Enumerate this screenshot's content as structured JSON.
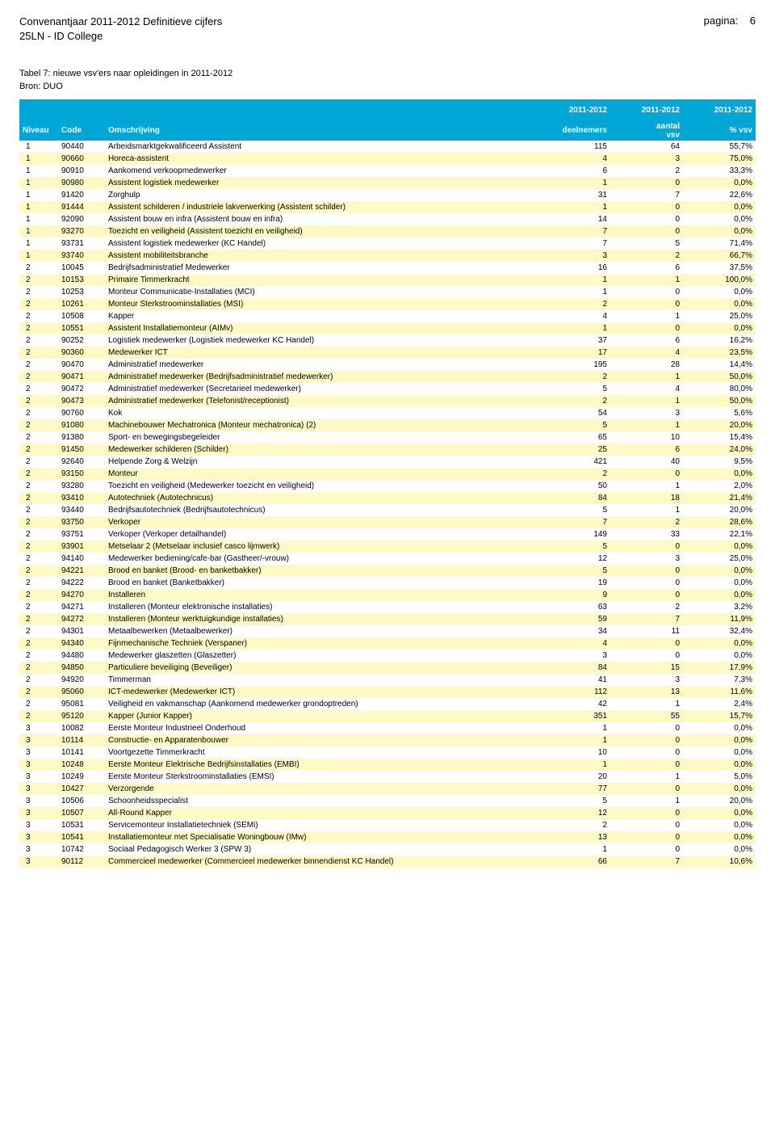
{
  "header": {
    "title_line1": "Convenantjaar 2011-2012 Definitieve cijfers",
    "title_line2": "25LN - ID College",
    "page_label": "pagina:",
    "page_number": "6"
  },
  "subheader": {
    "caption": "Tabel 7: nieuwe vsv'ers naar opleidingen in 2011-2012",
    "source": "Bron: DUO"
  },
  "year_headers": [
    "2011-2012",
    "2011-2012",
    "2011-2012"
  ],
  "columns": {
    "niveau": "Niveau",
    "code": "Code",
    "omschrijving": "Omschrijving",
    "deelnemers": "deelnemers",
    "aantal_vsv_top": "aantal",
    "aantal_vsv_bot": "vsv",
    "pct_vsv": "% vsv"
  },
  "colors": {
    "header_bg": "#00a6d6",
    "header_fg": "#ffffff",
    "row_even_bg": "#fff9c4",
    "row_odd_bg": "#ffffff"
  },
  "rows": [
    {
      "n": "1",
      "c": "90440",
      "d": "Arbeidsmarktgekwalificeerd Assistent",
      "v1": "115",
      "v2": "64",
      "v3": "55,7%"
    },
    {
      "n": "1",
      "c": "90660",
      "d": "Horeca-assistent",
      "v1": "4",
      "v2": "3",
      "v3": "75,0%"
    },
    {
      "n": "1",
      "c": "90910",
      "d": "Aankomend verkoopmedewerker",
      "v1": "6",
      "v2": "2",
      "v3": "33,3%"
    },
    {
      "n": "1",
      "c": "90980",
      "d": "Assistent logistiek medewerker",
      "v1": "1",
      "v2": "0",
      "v3": "0,0%"
    },
    {
      "n": "1",
      "c": "91420",
      "d": "Zorghulp",
      "v1": "31",
      "v2": "7",
      "v3": "22,6%"
    },
    {
      "n": "1",
      "c": "91444",
      "d": "Assistent schilderen / industriele lakverwerking (Assistent schilder)",
      "v1": "1",
      "v2": "0",
      "v3": "0,0%"
    },
    {
      "n": "1",
      "c": "92090",
      "d": "Assistent bouw en infra (Assistent bouw en infra)",
      "v1": "14",
      "v2": "0",
      "v3": "0,0%"
    },
    {
      "n": "1",
      "c": "93270",
      "d": "Toezicht en veiligheid (Assistent toezicht en veiligheid)",
      "v1": "7",
      "v2": "0",
      "v3": "0,0%"
    },
    {
      "n": "1",
      "c": "93731",
      "d": "Assistent logistiek medewerker (KC Handel)",
      "v1": "7",
      "v2": "5",
      "v3": "71,4%"
    },
    {
      "n": "1",
      "c": "93740",
      "d": "Assistent mobiliteitsbranche",
      "v1": "3",
      "v2": "2",
      "v3": "66,7%"
    },
    {
      "n": "2",
      "c": "10045",
      "d": "Bedrijfsadministratief Medewerker",
      "v1": "16",
      "v2": "6",
      "v3": "37,5%"
    },
    {
      "n": "2",
      "c": "10153",
      "d": "Primaire Timmerkracht",
      "v1": "1",
      "v2": "1",
      "v3": "100,0%"
    },
    {
      "n": "2",
      "c": "10253",
      "d": "Monteur Communicatie-Installaties (MCI)",
      "v1": "1",
      "v2": "0",
      "v3": "0,0%"
    },
    {
      "n": "2",
      "c": "10261",
      "d": "Monteur Sterkstroominstallaties (MSI)",
      "v1": "2",
      "v2": "0",
      "v3": "0,0%"
    },
    {
      "n": "2",
      "c": "10508",
      "d": "Kapper",
      "v1": "4",
      "v2": "1",
      "v3": "25,0%"
    },
    {
      "n": "2",
      "c": "10551",
      "d": "Assistent Installatiemonteur (AIMv)",
      "v1": "1",
      "v2": "0",
      "v3": "0,0%"
    },
    {
      "n": "2",
      "c": "90252",
      "d": "Logistiek medewerker (Logistiek medewerker KC Handel)",
      "v1": "37",
      "v2": "6",
      "v3": "16,2%"
    },
    {
      "n": "2",
      "c": "90360",
      "d": "Medewerker ICT",
      "v1": "17",
      "v2": "4",
      "v3": "23,5%"
    },
    {
      "n": "2",
      "c": "90470",
      "d": "Administratief medewerker",
      "v1": "195",
      "v2": "28",
      "v3": "14,4%"
    },
    {
      "n": "2",
      "c": "90471",
      "d": "Administratief medewerker (Bedrijfsadministratief medewerker)",
      "v1": "2",
      "v2": "1",
      "v3": "50,0%"
    },
    {
      "n": "2",
      "c": "90472",
      "d": "Administratief medewerker (Secretarieel medewerker)",
      "v1": "5",
      "v2": "4",
      "v3": "80,0%"
    },
    {
      "n": "2",
      "c": "90473",
      "d": "Administratief medewerker (Telefonist/receptionist)",
      "v1": "2",
      "v2": "1",
      "v3": "50,0%"
    },
    {
      "n": "2",
      "c": "90760",
      "d": "Kok",
      "v1": "54",
      "v2": "3",
      "v3": "5,6%"
    },
    {
      "n": "2",
      "c": "91080",
      "d": "Machinebouwer Mechatronica (Monteur mechatronica) (2)",
      "v1": "5",
      "v2": "1",
      "v3": "20,0%"
    },
    {
      "n": "2",
      "c": "91380",
      "d": "Sport- en bewegingsbegeleider",
      "v1": "65",
      "v2": "10",
      "v3": "15,4%"
    },
    {
      "n": "2",
      "c": "91450",
      "d": "Medewerker schilderen (Schilder)",
      "v1": "25",
      "v2": "6",
      "v3": "24,0%"
    },
    {
      "n": "2",
      "c": "92640",
      "d": "Helpende Zorg & Welzijn",
      "v1": "421",
      "v2": "40",
      "v3": "9,5%"
    },
    {
      "n": "2",
      "c": "93150",
      "d": "Monteur",
      "v1": "2",
      "v2": "0",
      "v3": "0,0%"
    },
    {
      "n": "2",
      "c": "93280",
      "d": "Toezicht en veiligheid (Medewerker toezicht en veiligheid)",
      "v1": "50",
      "v2": "1",
      "v3": "2,0%"
    },
    {
      "n": "2",
      "c": "93410",
      "d": "Autotechniek (Autotechnicus)",
      "v1": "84",
      "v2": "18",
      "v3": "21,4%"
    },
    {
      "n": "2",
      "c": "93440",
      "d": "Bedrijfsautotechniek (Bedrijfsautotechnicus)",
      "v1": "5",
      "v2": "1",
      "v3": "20,0%"
    },
    {
      "n": "2",
      "c": "93750",
      "d": "Verkoper",
      "v1": "7",
      "v2": "2",
      "v3": "28,6%"
    },
    {
      "n": "2",
      "c": "93751",
      "d": "Verkoper (Verkoper detailhandel)",
      "v1": "149",
      "v2": "33",
      "v3": "22,1%"
    },
    {
      "n": "2",
      "c": "93901",
      "d": "Metselaar 2 (Metselaar inclusief casco lijmwerk)",
      "v1": "5",
      "v2": "0",
      "v3": "0,0%"
    },
    {
      "n": "2",
      "c": "94140",
      "d": "Medewerker bediening/cafe-bar (Gastheer/-vrouw)",
      "v1": "12",
      "v2": "3",
      "v3": "25,0%"
    },
    {
      "n": "2",
      "c": "94221",
      "d": "Brood en banket (Brood- en banketbakker)",
      "v1": "5",
      "v2": "0",
      "v3": "0,0%"
    },
    {
      "n": "2",
      "c": "94222",
      "d": "Brood en banket (Banketbakker)",
      "v1": "19",
      "v2": "0",
      "v3": "0,0%"
    },
    {
      "n": "2",
      "c": "94270",
      "d": "Installeren",
      "v1": "9",
      "v2": "0",
      "v3": "0,0%"
    },
    {
      "n": "2",
      "c": "94271",
      "d": "Installeren (Monteur elektronische installaties)",
      "v1": "63",
      "v2": "2",
      "v3": "3,2%"
    },
    {
      "n": "2",
      "c": "94272",
      "d": "Installeren (Monteur werktuigkundige installaties)",
      "v1": "59",
      "v2": "7",
      "v3": "11,9%"
    },
    {
      "n": "2",
      "c": "94301",
      "d": "Metaalbewerken (Metaalbewerker)",
      "v1": "34",
      "v2": "11",
      "v3": "32,4%"
    },
    {
      "n": "2",
      "c": "94340",
      "d": "Fijnmechanische Techniek (Verspaner)",
      "v1": "4",
      "v2": "0",
      "v3": "0,0%"
    },
    {
      "n": "2",
      "c": "94480",
      "d": "Medewerker glaszetten (Glaszetter)",
      "v1": "3",
      "v2": "0",
      "v3": "0,0%"
    },
    {
      "n": "2",
      "c": "94850",
      "d": "Particuliere beveiliging (Beveiliger)",
      "v1": "84",
      "v2": "15",
      "v3": "17,9%"
    },
    {
      "n": "2",
      "c": "94920",
      "d": "Timmerman",
      "v1": "41",
      "v2": "3",
      "v3": "7,3%"
    },
    {
      "n": "2",
      "c": "95060",
      "d": "ICT-medewerker (Medewerker ICT)",
      "v1": "112",
      "v2": "13",
      "v3": "11,6%"
    },
    {
      "n": "2",
      "c": "95081",
      "d": "Veiligheid en vakmanschap (Aankomend medewerker grondoptreden)",
      "v1": "42",
      "v2": "1",
      "v3": "2,4%"
    },
    {
      "n": "2",
      "c": "95120",
      "d": "Kapper (Junior Kapper)",
      "v1": "351",
      "v2": "55",
      "v3": "15,7%"
    },
    {
      "n": "3",
      "c": "10082",
      "d": "Eerste Monteur Industrieel Onderhoud",
      "v1": "1",
      "v2": "0",
      "v3": "0,0%"
    },
    {
      "n": "3",
      "c": "10114",
      "d": "Constructie- en Apparatenbouwer",
      "v1": "1",
      "v2": "0",
      "v3": "0,0%"
    },
    {
      "n": "3",
      "c": "10141",
      "d": "Voortgezette Timmerkracht",
      "v1": "10",
      "v2": "0",
      "v3": "0,0%"
    },
    {
      "n": "3",
      "c": "10248",
      "d": "Eerste Monteur Elektrische Bedrijfsinstallaties (EMBI)",
      "v1": "1",
      "v2": "0",
      "v3": "0,0%"
    },
    {
      "n": "3",
      "c": "10249",
      "d": "Eerste Monteur Sterkstroominstallaties (EMSI)",
      "v1": "20",
      "v2": "1",
      "v3": "5,0%"
    },
    {
      "n": "3",
      "c": "10427",
      "d": "Verzorgende",
      "v1": "77",
      "v2": "0",
      "v3": "0,0%"
    },
    {
      "n": "3",
      "c": "10506",
      "d": "Schoonheidsspecialist",
      "v1": "5",
      "v2": "1",
      "v3": "20,0%"
    },
    {
      "n": "3",
      "c": "10507",
      "d": "All-Round Kapper",
      "v1": "12",
      "v2": "0",
      "v3": "0,0%"
    },
    {
      "n": "3",
      "c": "10531",
      "d": "Servicemonteur Installatietechniek (SEMi)",
      "v1": "2",
      "v2": "0",
      "v3": "0,0%"
    },
    {
      "n": "3",
      "c": "10541",
      "d": "Installatiemonteur met Specialisatie Woningbouw (IMw)",
      "v1": "13",
      "v2": "0",
      "v3": "0,0%"
    },
    {
      "n": "3",
      "c": "10742",
      "d": "Sociaal Pedagogisch Werker 3 (SPW 3)",
      "v1": "1",
      "v2": "0",
      "v3": "0,0%"
    },
    {
      "n": "3",
      "c": "90112",
      "d": "Commercieel medewerker (Commercieel medewerker binnendienst KC Handel)",
      "v1": "66",
      "v2": "7",
      "v3": "10,6%"
    }
  ]
}
